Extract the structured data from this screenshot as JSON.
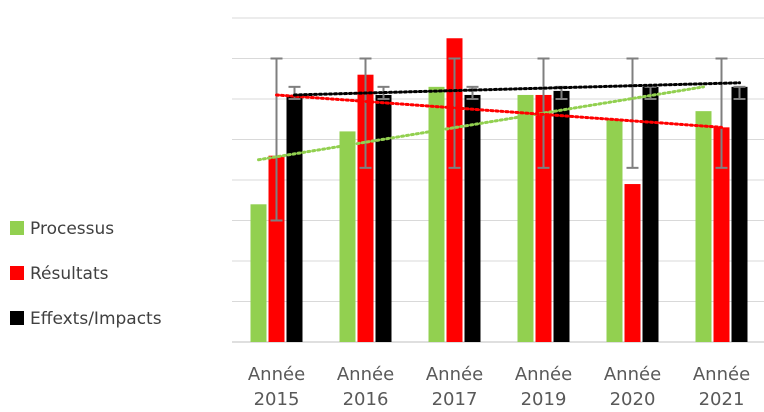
{
  "chart_data": {
    "type": "bar",
    "title": "",
    "xlabel": "",
    "ylabel": "",
    "ylim": [
      0,
      8
    ],
    "grid": true,
    "legend_position": "left",
    "categories": [
      [
        "Année",
        "2015"
      ],
      [
        "Année",
        "2016"
      ],
      [
        "Année",
        "2017"
      ],
      [
        "Année",
        "2019"
      ],
      [
        "Année",
        "2020"
      ],
      [
        "Année",
        "2021"
      ]
    ],
    "series": [
      {
        "name": "Processus",
        "color": "#92D050",
        "values": [
          3.4,
          5.2,
          6.3,
          6.1,
          5.5,
          5.7
        ],
        "trendline": [
          4.5,
          6.3
        ]
      },
      {
        "name": "Résultats",
        "color": "#FF0000",
        "values": [
          4.6,
          6.6,
          7.5,
          6.1,
          3.9,
          5.3
        ],
        "trendline": [
          6.1,
          5.3
        ],
        "error_bars": [
          [
            3,
            7
          ],
          [
            4.3,
            7
          ],
          [
            4.3,
            7
          ],
          [
            4.3,
            7
          ],
          [
            4.3,
            7
          ],
          [
            4.3,
            7
          ]
        ]
      },
      {
        "name": "Effexts/Impacts",
        "color": "#000000",
        "values": [
          6.1,
          6.1,
          6.1,
          6.2,
          6.3,
          6.3
        ],
        "trendline": [
          6.1,
          6.4
        ],
        "error_bars": [
          [
            6,
            6.3
          ],
          [
            6,
            6.3
          ],
          [
            6,
            6.3
          ],
          [
            6,
            6.3
          ],
          [
            6,
            6.3
          ],
          [
            6,
            6.3
          ]
        ]
      }
    ],
    "error_bar_color": "#7F7F7F",
    "grid_color": "#D9D9D9",
    "axis_color": "#BFBFBF"
  }
}
